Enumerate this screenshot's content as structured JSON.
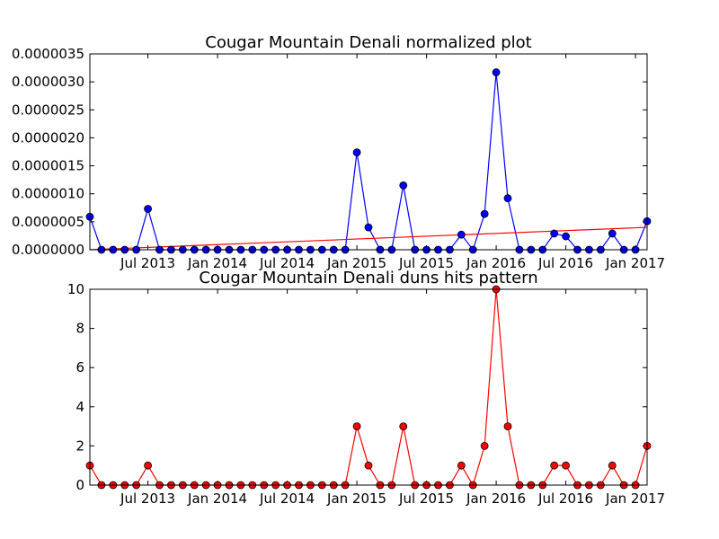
{
  "colors": {
    "series_blue": "#0000ff",
    "series_red": "#ff0000",
    "trend_red": "#ff0000"
  },
  "chart_data": [
    {
      "type": "line",
      "title": "Cougar Mountain Denali normalized plot",
      "xlabel": "",
      "ylabel": "",
      "x": [
        "2013-02",
        "2013-03",
        "2013-04",
        "2013-05",
        "2013-06",
        "2013-07",
        "2013-08",
        "2013-09",
        "2013-10",
        "2013-11",
        "2013-12",
        "2014-01",
        "2014-02",
        "2014-03",
        "2014-04",
        "2014-05",
        "2014-06",
        "2014-07",
        "2014-08",
        "2014-09",
        "2014-10",
        "2014-11",
        "2014-12",
        "2015-01",
        "2015-02",
        "2015-03",
        "2015-04",
        "2015-05",
        "2015-06",
        "2015-07",
        "2015-08",
        "2015-09",
        "2015-10",
        "2015-11",
        "2015-12",
        "2016-01",
        "2016-02",
        "2016-03",
        "2016-04",
        "2016-05",
        "2016-06",
        "2016-07",
        "2016-08",
        "2016-09",
        "2016-10",
        "2016-11",
        "2016-12",
        "2017-01",
        "2017-02"
      ],
      "xlim": [
        "2013-02",
        "2017-02"
      ],
      "ylim": [
        0,
        3.5e-06
      ],
      "yticks": [
        "0.0000000",
        "0.0000005",
        "0.0000010",
        "0.0000015",
        "0.0000020",
        "0.0000025",
        "0.0000030",
        "0.0000035"
      ],
      "xticks": [
        {
          "date": "2013-07",
          "label": "Jul 2013"
        },
        {
          "date": "2014-01",
          "label": "Jan 2014"
        },
        {
          "date": "2014-07",
          "label": "Jul 2014"
        },
        {
          "date": "2015-01",
          "label": "Jan 2015"
        },
        {
          "date": "2015-07",
          "label": "Jul 2015"
        },
        {
          "date": "2016-01",
          "label": "Jan 2016"
        },
        {
          "date": "2016-07",
          "label": "Jul 2016"
        },
        {
          "date": "2017-01",
          "label": "Jan 2017"
        }
      ],
      "series": [
        {
          "values": [
            5.9e-07,
            0,
            0,
            0,
            0,
            7.3e-07,
            0,
            0,
            0,
            0,
            0,
            0,
            0,
            0,
            0,
            0,
            0,
            0,
            0,
            0,
            0,
            0,
            0,
            1.74e-06,
            4e-07,
            0,
            0,
            1.15e-06,
            0,
            0,
            0,
            0,
            2.7e-07,
            0,
            6.4e-07,
            3.17e-06,
            9.2e-07,
            0,
            0,
            0,
            2.9e-07,
            2.4e-07,
            0,
            0,
            0,
            2.9e-07,
            0,
            0,
            5.1e-07
          ],
          "style": "line-marker"
        }
      ],
      "trendline": {
        "x": [
          "2013-02",
          "2017-02"
        ],
        "y": [
          0,
          4e-07
        ]
      },
      "grid": false
    },
    {
      "type": "line",
      "title": "Cougar Mountain Denali duns hits pattern",
      "xlabel": "",
      "ylabel": "",
      "x": [
        "2013-02",
        "2013-03",
        "2013-04",
        "2013-05",
        "2013-06",
        "2013-07",
        "2013-08",
        "2013-09",
        "2013-10",
        "2013-11",
        "2013-12",
        "2014-01",
        "2014-02",
        "2014-03",
        "2014-04",
        "2014-05",
        "2014-06",
        "2014-07",
        "2014-08",
        "2014-09",
        "2014-10",
        "2014-11",
        "2014-12",
        "2015-01",
        "2015-02",
        "2015-03",
        "2015-04",
        "2015-05",
        "2015-06",
        "2015-07",
        "2015-08",
        "2015-09",
        "2015-10",
        "2015-11",
        "2015-12",
        "2016-01",
        "2016-02",
        "2016-03",
        "2016-04",
        "2016-05",
        "2016-06",
        "2016-07",
        "2016-08",
        "2016-09",
        "2016-10",
        "2016-11",
        "2016-12",
        "2017-01",
        "2017-02"
      ],
      "xlim": [
        "2013-02",
        "2017-02"
      ],
      "ylim": [
        0,
        10
      ],
      "yticks": [
        "0",
        "2",
        "4",
        "6",
        "8",
        "10"
      ],
      "xticks": [
        {
          "date": "2013-07",
          "label": "Jul 2013"
        },
        {
          "date": "2014-01",
          "label": "Jan 2014"
        },
        {
          "date": "2014-07",
          "label": "Jul 2014"
        },
        {
          "date": "2015-01",
          "label": "Jan 2015"
        },
        {
          "date": "2015-07",
          "label": "Jul 2015"
        },
        {
          "date": "2016-01",
          "label": "Jan 2016"
        },
        {
          "date": "2016-07",
          "label": "Jul 2016"
        },
        {
          "date": "2017-01",
          "label": "Jan 2017"
        }
      ],
      "series": [
        {
          "values": [
            1,
            0,
            0,
            0,
            0,
            1,
            0,
            0,
            0,
            0,
            0,
            0,
            0,
            0,
            0,
            0,
            0,
            0,
            0,
            0,
            0,
            0,
            0,
            3,
            1,
            0,
            0,
            3,
            0,
            0,
            0,
            0,
            1,
            0,
            2,
            10,
            3,
            0,
            0,
            0,
            1,
            1,
            0,
            0,
            0,
            1,
            0,
            0,
            2
          ],
          "style": "line-marker"
        }
      ],
      "grid": false
    }
  ]
}
